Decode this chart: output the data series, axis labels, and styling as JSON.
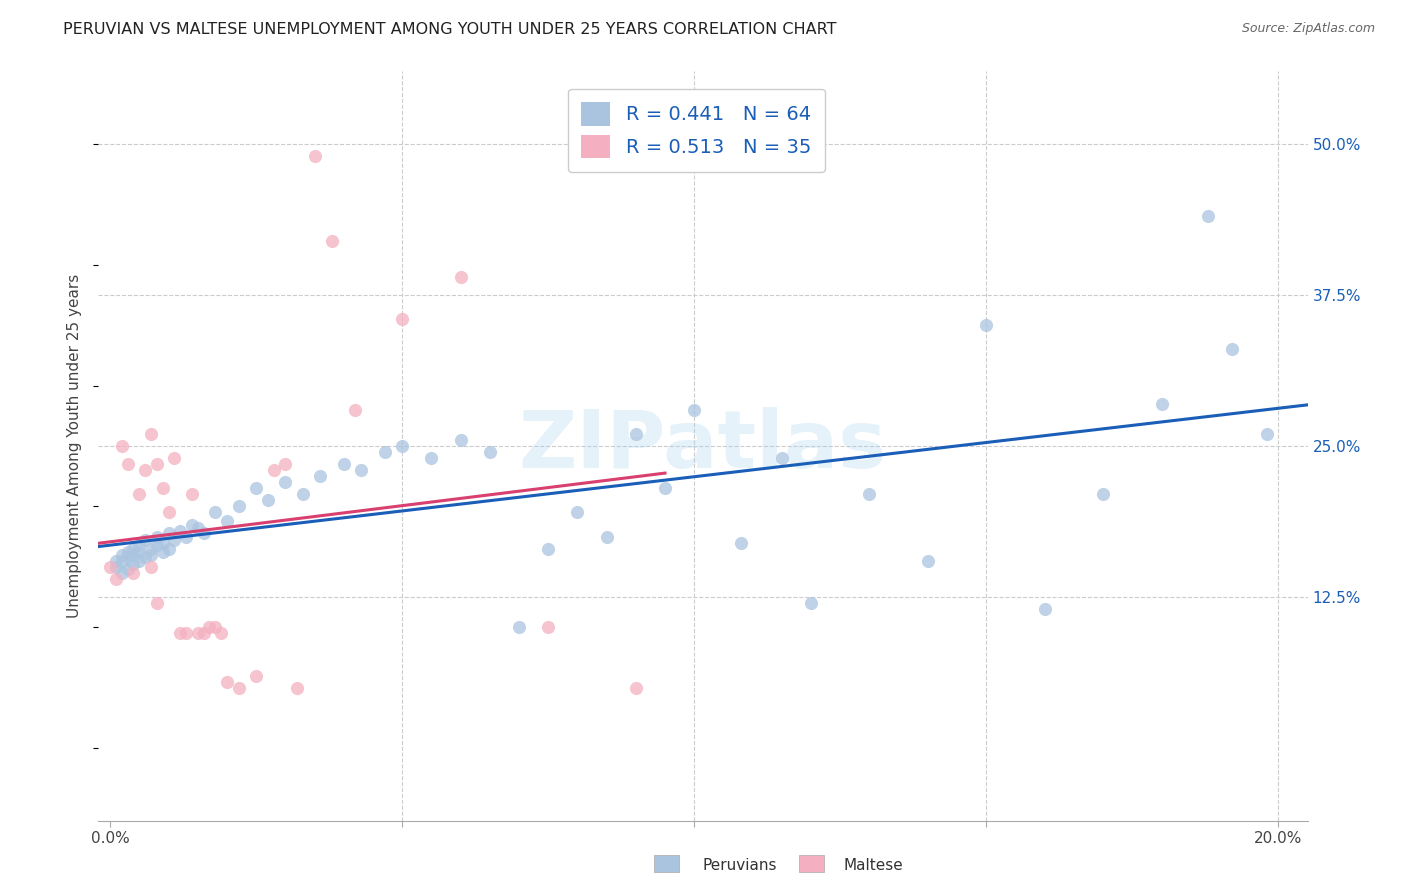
{
  "title": "PERUVIAN VS MALTESE UNEMPLOYMENT AMONG YOUTH UNDER 25 YEARS CORRELATION CHART",
  "source": "Source: ZipAtlas.com",
  "ylabel": "Unemployment Among Youth under 25 years",
  "xlim": [
    -0.002,
    0.205
  ],
  "ylim": [
    -0.06,
    0.56
  ],
  "ytick_vals": [
    0.125,
    0.25,
    0.375,
    0.5
  ],
  "ytick_labels": [
    "12.5%",
    "25.0%",
    "37.5%",
    "50.0%"
  ],
  "xtick_vals": [
    0.0,
    0.05,
    0.1,
    0.15,
    0.2
  ],
  "xtick_labels": [
    "0.0%",
    "",
    "",
    "",
    "20.0%"
  ],
  "peruvian_color": "#aac4e0",
  "maltese_color": "#f4b0c0",
  "peruvian_line_color": "#1a5eb8",
  "maltese_line_color": "#d94070",
  "text_color": "#1a5eb8",
  "R_peruvian": 0.441,
  "N_peruvian": 64,
  "R_maltese": 0.513,
  "N_maltese": 35,
  "background_color": "#ffffff",
  "grid_color": "#cccccc",
  "watermark": "ZIPatlas",
  "peruvians_x": [
    0.001,
    0.001,
    0.002,
    0.002,
    0.002,
    0.003,
    0.003,
    0.003,
    0.004,
    0.004,
    0.004,
    0.005,
    0.005,
    0.005,
    0.006,
    0.006,
    0.007,
    0.007,
    0.008,
    0.008,
    0.009,
    0.009,
    0.01,
    0.01,
    0.011,
    0.012,
    0.013,
    0.014,
    0.015,
    0.016,
    0.018,
    0.02,
    0.022,
    0.025,
    0.027,
    0.03,
    0.033,
    0.036,
    0.04,
    0.043,
    0.047,
    0.05,
    0.055,
    0.06,
    0.065,
    0.07,
    0.075,
    0.08,
    0.085,
    0.09,
    0.095,
    0.1,
    0.108,
    0.115,
    0.12,
    0.13,
    0.14,
    0.15,
    0.16,
    0.17,
    0.18,
    0.188,
    0.192,
    0.198
  ],
  "peruvians_y": [
    0.15,
    0.155,
    0.145,
    0.16,
    0.155,
    0.148,
    0.162,
    0.158,
    0.152,
    0.165,
    0.16,
    0.155,
    0.168,
    0.162,
    0.158,
    0.172,
    0.165,
    0.16,
    0.168,
    0.175,
    0.162,
    0.17,
    0.165,
    0.178,
    0.172,
    0.18,
    0.175,
    0.185,
    0.182,
    0.178,
    0.195,
    0.188,
    0.2,
    0.215,
    0.205,
    0.22,
    0.21,
    0.225,
    0.235,
    0.23,
    0.245,
    0.25,
    0.24,
    0.255,
    0.245,
    0.1,
    0.165,
    0.195,
    0.175,
    0.26,
    0.215,
    0.28,
    0.17,
    0.24,
    0.12,
    0.21,
    0.155,
    0.35,
    0.115,
    0.21,
    0.285,
    0.44,
    0.33,
    0.26
  ],
  "maltese_x": [
    0.0,
    0.001,
    0.002,
    0.003,
    0.004,
    0.005,
    0.006,
    0.007,
    0.007,
    0.008,
    0.008,
    0.009,
    0.01,
    0.011,
    0.012,
    0.013,
    0.014,
    0.015,
    0.016,
    0.017,
    0.018,
    0.019,
    0.02,
    0.022,
    0.025,
    0.028,
    0.03,
    0.032,
    0.035,
    0.038,
    0.042,
    0.05,
    0.06,
    0.075,
    0.09
  ],
  "maltese_y": [
    0.15,
    0.14,
    0.25,
    0.235,
    0.145,
    0.21,
    0.23,
    0.15,
    0.26,
    0.235,
    0.12,
    0.215,
    0.195,
    0.24,
    0.095,
    0.095,
    0.21,
    0.095,
    0.095,
    0.1,
    0.1,
    0.095,
    0.055,
    0.05,
    0.06,
    0.23,
    0.235,
    0.05,
    0.49,
    0.42,
    0.28,
    0.355,
    0.39,
    0.1,
    0.05
  ]
}
